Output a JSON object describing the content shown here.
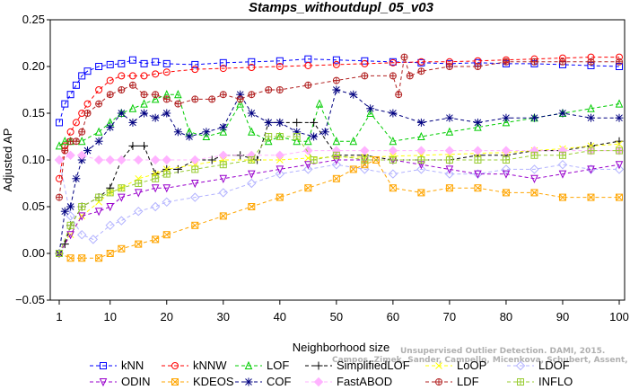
{
  "chart_data": {
    "type": "line",
    "title": "Stamps_withoutdupl_05_v03",
    "xlabel": "Neighborhood size",
    "ylabel": "Adjusted AP",
    "xlim": [
      1,
      100
    ],
    "ylim": [
      -0.05,
      0.25
    ],
    "x_ticks": [
      "1",
      "10",
      "20",
      "30",
      "40",
      "50",
      "60",
      "70",
      "80",
      "90",
      "100"
    ],
    "y_ticks": [
      "0.25",
      "0.20",
      "0.15",
      "0.10",
      "0.05",
      "0.00",
      "−0.05"
    ],
    "grid": false,
    "legend_position": "bottom",
    "watermark": [
      "Unsupervised Outlier Detection. DAMI, 2015.",
      "Campos, Zimek, Sander, Campello, Micenkova, Schubert, Assent, Houle"
    ],
    "series": [
      {
        "name": "kNN",
        "color": "#0000ff",
        "marker": "square",
        "x": [
          1,
          2,
          3,
          4,
          5,
          6,
          8,
          10,
          12,
          14,
          16,
          18,
          20,
          25,
          30,
          35,
          40,
          45,
          50,
          55,
          60,
          65,
          70,
          75,
          80,
          85,
          90,
          95,
          100
        ],
        "values": [
          0.14,
          0.16,
          0.17,
          0.18,
          0.19,
          0.195,
          0.2,
          0.202,
          0.203,
          0.207,
          0.203,
          0.205,
          0.203,
          0.202,
          0.204,
          0.205,
          0.206,
          0.208,
          0.207,
          0.206,
          0.205,
          0.204,
          0.203,
          0.204,
          0.203,
          0.203,
          0.202,
          0.201,
          0.2
        ]
      },
      {
        "name": "kNNW",
        "color": "#ff0000",
        "marker": "circle",
        "x": [
          1,
          2,
          3,
          4,
          5,
          6,
          8,
          10,
          12,
          14,
          16,
          18,
          20,
          25,
          30,
          35,
          40,
          45,
          50,
          55,
          60,
          65,
          70,
          75,
          80,
          85,
          90,
          95,
          100
        ],
        "values": [
          0.08,
          0.115,
          0.13,
          0.14,
          0.15,
          0.16,
          0.175,
          0.185,
          0.19,
          0.19,
          0.19,
          0.192,
          0.194,
          0.197,
          0.198,
          0.199,
          0.2,
          0.201,
          0.202,
          0.203,
          0.204,
          0.205,
          0.205,
          0.206,
          0.207,
          0.208,
          0.209,
          0.21,
          0.21
        ]
      },
      {
        "name": "LOF",
        "color": "#00cc00",
        "marker": "triangle-up",
        "x": [
          1,
          2,
          3,
          5,
          8,
          10,
          12,
          14,
          16,
          18,
          20,
          22,
          24,
          27,
          30,
          33,
          35,
          38,
          40,
          43,
          45,
          47,
          50,
          53,
          56,
          60,
          65,
          70,
          75,
          80,
          85,
          90,
          95,
          100
        ],
        "values": [
          0.115,
          0.12,
          0.12,
          0.12,
          0.13,
          0.14,
          0.15,
          0.155,
          0.16,
          0.165,
          0.17,
          0.17,
          0.13,
          0.125,
          0.13,
          0.16,
          0.13,
          0.12,
          0.125,
          0.12,
          0.12,
          0.16,
          0.12,
          0.12,
          0.15,
          0.12,
          0.125,
          0.13,
          0.135,
          0.14,
          0.145,
          0.15,
          0.155,
          0.16
        ]
      },
      {
        "name": "SimplifiedLOF",
        "color": "#000000",
        "marker": "plus",
        "x": [
          1,
          2,
          3,
          5,
          8,
          10,
          12,
          14,
          16,
          18,
          20,
          22,
          25,
          28,
          30,
          33,
          36,
          38,
          40,
          43,
          46,
          50,
          55,
          60,
          65,
          70,
          75,
          80,
          85,
          90,
          95,
          100
        ],
        "values": [
          0.0,
          0.01,
          0.03,
          0.05,
          0.06,
          0.07,
          0.1,
          0.115,
          0.115,
          0.085,
          0.09,
          0.09,
          0.1,
          0.1,
          0.105,
          0.105,
          0.1,
          0.14,
          0.14,
          0.14,
          0.14,
          0.105,
          0.105,
          0.1,
          0.1,
          0.1,
          0.105,
          0.105,
          0.11,
          0.11,
          0.115,
          0.12
        ]
      },
      {
        "name": "LoOP",
        "color": "#ffff00",
        "marker": "x",
        "x": [
          1,
          3,
          5,
          8,
          10,
          12,
          15,
          18,
          20,
          25,
          30,
          35,
          40,
          45,
          50,
          55,
          60,
          65,
          70,
          75,
          80,
          85,
          90,
          95,
          100
        ],
        "values": [
          0.0,
          0.02,
          0.04,
          0.055,
          0.065,
          0.07,
          0.08,
          0.085,
          0.09,
          0.095,
          0.1,
          0.1,
          0.1,
          0.102,
          0.103,
          0.103,
          0.104,
          0.105,
          0.106,
          0.107,
          0.108,
          0.11,
          0.112,
          0.115,
          0.117
        ]
      },
      {
        "name": "LDOF",
        "color": "#b3b3ff",
        "marker": "diamond",
        "x": [
          1,
          3,
          5,
          7,
          10,
          12,
          15,
          18,
          20,
          25,
          30,
          35,
          40,
          45,
          50,
          55,
          60,
          65,
          70,
          75,
          80,
          85,
          90,
          95,
          100
        ],
        "values": [
          0.1,
          0.04,
          0.02,
          0.015,
          0.03,
          0.035,
          0.045,
          0.05,
          0.055,
          0.06,
          0.065,
          0.075,
          0.085,
          0.09,
          0.095,
          0.09,
          0.085,
          0.09,
          0.085,
          0.085,
          0.09,
          0.09,
          0.095,
          0.09,
          0.09
        ]
      },
      {
        "name": "ODIN",
        "color": "#9900cc",
        "marker": "triangle-down",
        "x": [
          1,
          3,
          5,
          8,
          10,
          12,
          15,
          18,
          20,
          25,
          30,
          35,
          40,
          45,
          50,
          55,
          60,
          65,
          70,
          75,
          80,
          85,
          90,
          95,
          100
        ],
        "values": [
          0.0,
          0.02,
          0.04,
          0.045,
          0.05,
          0.06,
          0.065,
          0.07,
          0.07,
          0.075,
          0.08,
          0.085,
          0.09,
          0.095,
          0.1,
          0.1,
          0.1,
          0.095,
          0.09,
          0.085,
          0.085,
          0.08,
          0.085,
          0.09,
          0.095
        ]
      },
      {
        "name": "KDEOS",
        "color": "#ffa500",
        "marker": "square-x",
        "x": [
          1,
          3,
          5,
          8,
          10,
          12,
          15,
          18,
          20,
          25,
          30,
          35,
          40,
          45,
          50,
          53,
          55,
          57,
          60,
          65,
          70,
          75,
          80,
          85,
          90,
          95,
          100
        ],
        "values": [
          0.0,
          -0.005,
          -0.005,
          -0.005,
          0.0,
          0.005,
          0.01,
          0.015,
          0.02,
          0.03,
          0.04,
          0.05,
          0.06,
          0.07,
          0.08,
          0.09,
          0.095,
          0.1,
          0.07,
          0.065,
          0.07,
          0.07,
          0.065,
          0.065,
          0.06,
          0.06,
          0.06
        ]
      },
      {
        "name": "COF",
        "color": "#000080",
        "marker": "asterisk",
        "x": [
          1,
          2,
          3,
          4,
          5,
          6,
          8,
          10,
          12,
          14,
          16,
          18,
          20,
          22,
          24,
          27,
          30,
          33,
          35,
          38,
          40,
          43,
          46,
          48,
          50,
          53,
          56,
          60,
          65,
          70,
          75,
          80,
          85,
          90,
          95,
          100
        ],
        "values": [
          0.0,
          0.045,
          0.05,
          0.08,
          0.1,
          0.11,
          0.12,
          0.135,
          0.15,
          0.14,
          0.15,
          0.145,
          0.15,
          0.13,
          0.125,
          0.13,
          0.135,
          0.17,
          0.15,
          0.14,
          0.14,
          0.13,
          0.125,
          0.13,
          0.175,
          0.17,
          0.155,
          0.15,
          0.14,
          0.145,
          0.14,
          0.145,
          0.145,
          0.15,
          0.145,
          0.145
        ]
      },
      {
        "name": "FastABOD",
        "color": "#ffb3ff",
        "marker": "diamond-filled",
        "x": [
          1,
          3,
          5,
          8,
          10,
          12,
          15,
          18,
          20,
          25,
          30,
          35,
          40,
          45,
          50,
          55,
          60,
          65,
          70,
          75,
          80,
          85,
          90,
          95,
          100
        ],
        "values": [
          0.1,
          0.105,
          0.105,
          0.1,
          0.1,
          0.1,
          0.1,
          0.1,
          0.1,
          0.1,
          0.105,
          0.105,
          0.105,
          0.11,
          0.11,
          0.11,
          0.11,
          0.11,
          0.11,
          0.11,
          0.11,
          0.11,
          0.11,
          0.11,
          0.11
        ]
      },
      {
        "name": "LDF",
        "color": "#b22222",
        "marker": "circle-plus",
        "x": [
          1,
          2,
          3,
          4,
          5,
          6,
          8,
          10,
          12,
          14,
          16,
          18,
          20,
          22,
          25,
          28,
          30,
          33,
          35,
          38,
          40,
          45,
          50,
          55,
          60,
          61,
          62,
          63,
          65,
          70,
          75,
          80,
          85,
          90,
          95,
          100
        ],
        "values": [
          0.06,
          0.11,
          0.12,
          0.12,
          0.13,
          0.15,
          0.16,
          0.17,
          0.175,
          0.18,
          0.17,
          0.17,
          0.165,
          0.16,
          0.165,
          0.165,
          0.17,
          0.165,
          0.17,
          0.175,
          0.175,
          0.18,
          0.185,
          0.19,
          0.19,
          0.17,
          0.21,
          0.19,
          0.195,
          0.2,
          0.2,
          0.205,
          0.205,
          0.205,
          0.205,
          0.205
        ]
      },
      {
        "name": "INFLO",
        "color": "#99cc33",
        "marker": "square-plus",
        "x": [
          1,
          3,
          5,
          8,
          10,
          12,
          15,
          18,
          20,
          25,
          30,
          35,
          38,
          40,
          43,
          46,
          50,
          55,
          60,
          65,
          70,
          75,
          80,
          85,
          90,
          95,
          100
        ],
        "values": [
          0.0,
          0.03,
          0.05,
          0.06,
          0.065,
          0.07,
          0.075,
          0.08,
          0.085,
          0.09,
          0.095,
          0.1,
          0.125,
          0.125,
          0.125,
          0.1,
          0.105,
          0.1,
          0.1,
          0.1,
          0.1,
          0.1,
          0.1,
          0.105,
          0.105,
          0.11,
          0.11
        ]
      }
    ]
  }
}
